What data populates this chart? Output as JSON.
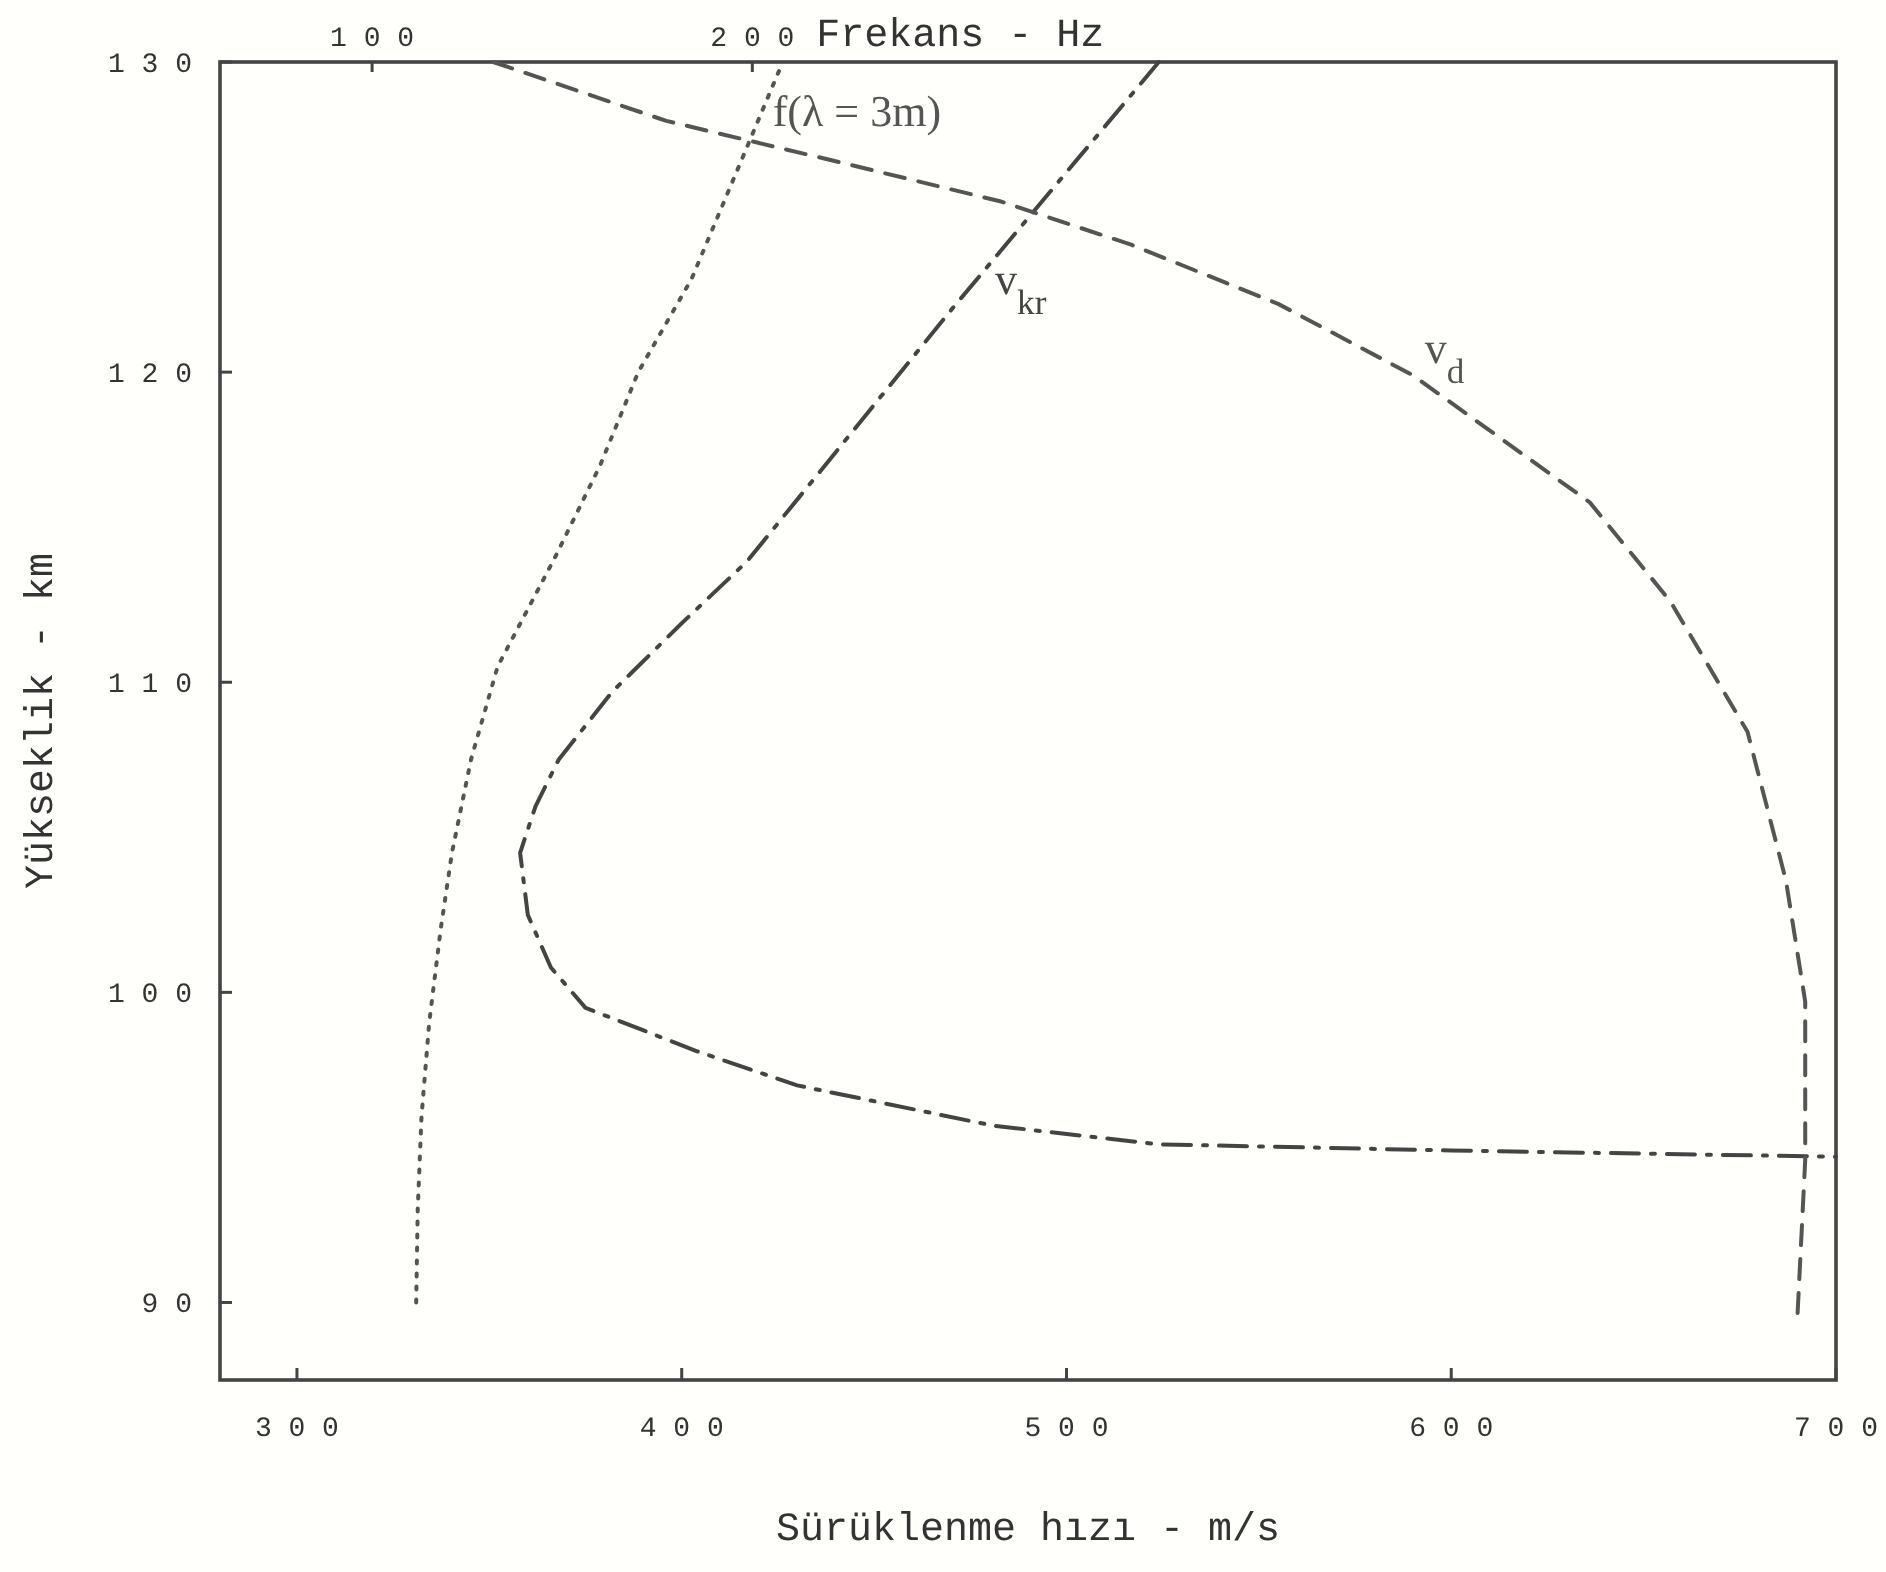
{
  "chart_data": {
    "type": "line",
    "xlabel": "Sürüklenme hızı - m/s",
    "ylabel": "Yükseklik - km",
    "x2label": "Frekans - Hz",
    "xlim": [
      280,
      700
    ],
    "xticks": [
      300,
      400,
      500,
      600,
      700
    ],
    "ylim": [
      87.5,
      130
    ],
    "yticks": [
      90,
      100,
      110,
      120,
      130
    ],
    "x2lim": [
      60,
      485
    ],
    "x2ticks": [
      100,
      200
    ],
    "grid": false,
    "marker": "none",
    "series": [
      {
        "name": "f(λ = 3m)",
        "axis": "x2",
        "color": "#555555",
        "line_style": "dotted",
        "x": [
          111.6,
          112,
          113,
          115,
          118,
          121,
          126,
          133,
          148,
          160,
          170,
          184,
          196,
          208
        ],
        "values": [
          90,
          93,
          96,
          99,
          102,
          104.5,
          107.5,
          110.5,
          114,
          117,
          120,
          123,
          126.5,
          130
        ]
      },
      {
        "name": "v$_{kr}$",
        "color": "#444444",
        "line_style": "dashdot",
        "x": [
          524,
          470,
          417,
          400,
          382,
          368,
          362,
          358,
          360,
          366,
          375,
          404,
          430,
          481,
          524,
          600,
          700
        ],
        "values": [
          130,
          122,
          113.9,
          111.9,
          109.7,
          107.5,
          106,
          104.5,
          102.5,
          100.8,
          99.5,
          98.1,
          97,
          95.7,
          95.1,
          94.9,
          94.7
        ]
      },
      {
        "name": "v$_{d}$",
        "color": "#555555",
        "line_style": "dashed",
        "x": [
          351,
          396,
          440,
          483,
          517,
          555,
          590,
          636,
          657,
          677,
          687,
          692,
          692,
          690
        ],
        "values": [
          130,
          128.1,
          126.8,
          125.5,
          124.1,
          122.2,
          119.9,
          115.8,
          112.6,
          108.4,
          103.6,
          99.7,
          94.6,
          89.6
        ]
      }
    ]
  }
}
